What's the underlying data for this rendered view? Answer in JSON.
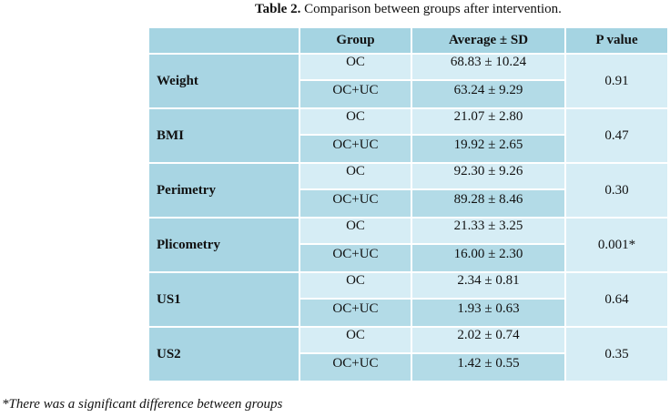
{
  "title": {
    "label": "Table 2.",
    "text": "Comparison between groups after intervention."
  },
  "table": {
    "header": [
      "Group",
      "Average ± SD",
      "P value"
    ],
    "groups": [
      {
        "label": "Weight",
        "p": "0.91",
        "rows": [
          {
            "group": "OC",
            "value": "68.83 ± 10.24"
          },
          {
            "group": "OC+UC",
            "value": "63.24 ± 9.29"
          }
        ]
      },
      {
        "label": "BMI",
        "p": "0.47",
        "rows": [
          {
            "group": "OC",
            "value": "21.07 ± 2.80"
          },
          {
            "group": "OC+UC",
            "value": "19.92 ± 2.65"
          }
        ]
      },
      {
        "label": "Perimetry",
        "p": "0.30",
        "rows": [
          {
            "group": "OC",
            "value": "92.30 ± 9.26"
          },
          {
            "group": "OC+UC",
            "value": "89.28 ± 8.46"
          }
        ]
      },
      {
        "label": "Plicometry",
        "p": "0.001*",
        "rows": [
          {
            "group": "OC",
            "value": "21.33 ± 3.25"
          },
          {
            "group": "OC+UC",
            "value": "16.00 ± 2.30"
          }
        ]
      },
      {
        "label": "US1",
        "p": "0.64",
        "rows": [
          {
            "group": "OC",
            "value": "2.34 ± 0.81"
          },
          {
            "group": "OC+UC",
            "value": "1.93 ± 0.63"
          }
        ]
      },
      {
        "label": "US2",
        "p": "0.35",
        "rows": [
          {
            "group": "OC",
            "value": "2.02 ± 0.74"
          },
          {
            "group": "OC+UC",
            "value": "1.42 ± 0.55"
          }
        ]
      }
    ]
  },
  "footnote": "*There was a significant difference between groups"
}
